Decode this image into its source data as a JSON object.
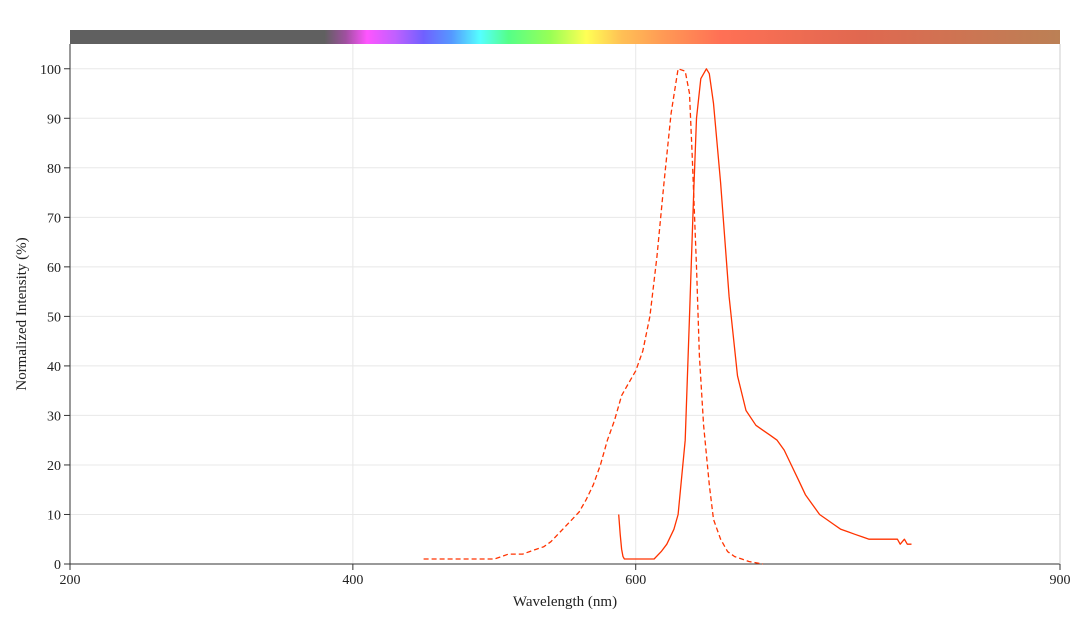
{
  "chart_data": {
    "type": "line",
    "xlabel": "Wavelength (nm)",
    "ylabel": "Normalized Intensity (%)",
    "xlim": [
      200,
      900
    ],
    "ylim": [
      0,
      105
    ],
    "x_ticks": [
      200,
      400,
      600,
      900
    ],
    "y_ticks": [
      0,
      10,
      20,
      30,
      40,
      50,
      60,
      70,
      80,
      90,
      100
    ],
    "grid": true,
    "legend": "none",
    "spectrum_bar": {
      "stops": [
        {
          "wl": 200,
          "color": "#606060"
        },
        {
          "wl": 380,
          "color": "#606060"
        },
        {
          "wl": 395,
          "color": "#a050a0"
        },
        {
          "wl": 410,
          "color": "#ff55ff"
        },
        {
          "wl": 430,
          "color": "#c060ff"
        },
        {
          "wl": 450,
          "color": "#7060ff"
        },
        {
          "wl": 470,
          "color": "#5599ff"
        },
        {
          "wl": 490,
          "color": "#55ffff"
        },
        {
          "wl": 510,
          "color": "#55ff88"
        },
        {
          "wl": 540,
          "color": "#99ff55"
        },
        {
          "wl": 565,
          "color": "#ffff55"
        },
        {
          "wl": 590,
          "color": "#ffc055"
        },
        {
          "wl": 620,
          "color": "#ff9955"
        },
        {
          "wl": 660,
          "color": "#ff7055"
        },
        {
          "wl": 760,
          "color": "#e06850"
        },
        {
          "wl": 900,
          "color": "#bb8055"
        }
      ]
    },
    "series": [
      {
        "style": "dashed",
        "color": "#ff3300",
        "x": [
          450,
          500,
          505,
          510,
          520,
          525,
          530,
          535,
          540,
          545,
          550,
          555,
          560,
          565,
          570,
          575,
          580,
          585,
          590,
          595,
          600,
          605,
          610,
          615,
          620,
          625,
          630,
          635,
          638,
          640,
          643,
          645,
          648,
          652,
          655,
          660,
          665,
          670,
          675,
          680,
          690
        ],
        "y": [
          1,
          1,
          1.5,
          2,
          2,
          2.5,
          3,
          3.5,
          4.5,
          6,
          7.5,
          9,
          10.5,
          13,
          16,
          20,
          25,
          29,
          34,
          36.5,
          39,
          43,
          50,
          62,
          77,
          91,
          100,
          99.5,
          95,
          82,
          60,
          42,
          28,
          16,
          9,
          5,
          2.5,
          1.5,
          1,
          0.5,
          0
        ]
      },
      {
        "style": "solid",
        "color": "#ff3300",
        "x": [
          588,
          589,
          590,
          591,
          592,
          593,
          594,
          600,
          605,
          613,
          618,
          622,
          627,
          630,
          635,
          638,
          641,
          643,
          646,
          650,
          652,
          655,
          660,
          666,
          672,
          678,
          685,
          690,
          695,
          700,
          705,
          710,
          715,
          720,
          725,
          730,
          735,
          740,
          745,
          750,
          755,
          760,
          765,
          770,
          775,
          780,
          785,
          787,
          790,
          792,
          795
        ],
        "y": [
          10,
          6,
          3,
          1.5,
          1,
          1,
          1,
          1,
          1,
          1,
          2.5,
          4,
          7,
          10,
          25,
          50,
          75,
          90,
          98,
          100,
          99,
          93,
          77,
          54,
          38,
          31,
          28,
          27,
          26,
          25,
          23,
          20,
          17,
          14,
          12,
          10,
          9,
          8,
          7,
          6.5,
          6,
          5.5,
          5,
          5,
          5,
          5,
          5,
          4,
          5,
          4,
          4
        ]
      }
    ]
  }
}
